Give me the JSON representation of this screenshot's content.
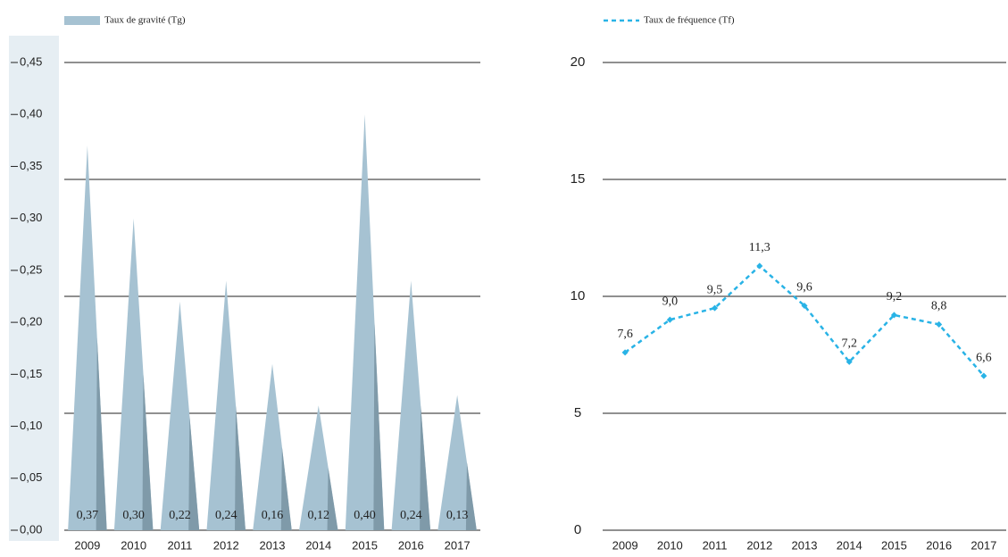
{
  "chart_data": [
    {
      "type": "bar",
      "legend": "Taux de gravité (Tg)",
      "categories": [
        "2009",
        "2010",
        "2011",
        "2012",
        "2013",
        "2014",
        "2015",
        "2016",
        "2017"
      ],
      "values": [
        0.37,
        0.3,
        0.22,
        0.24,
        0.16,
        0.12,
        0.4,
        0.24,
        0.13
      ],
      "value_labels": [
        "0,37",
        "0,30",
        "0,22",
        "0,24",
        "0,16",
        "0,12",
        "0,40",
        "0,24",
        "0,13"
      ],
      "color": "#a6c2d2",
      "ylim": [
        0,
        0.45
      ],
      "yticks": [
        {
          "value": 0,
          "label": "0,00"
        },
        {
          "value": 0.05,
          "label": "0,05"
        },
        {
          "value": 0.1,
          "label": "0,10"
        },
        {
          "value": 0.15,
          "label": "0,15"
        },
        {
          "value": 0.2,
          "label": "0,20"
        },
        {
          "value": 0.25,
          "label": "0,25"
        },
        {
          "value": 0.3,
          "label": "0,30"
        },
        {
          "value": 0.35,
          "label": "0,35"
        },
        {
          "value": 0.4,
          "label": "0,40"
        },
        {
          "value": 0.45,
          "label": "0,45"
        }
      ]
    },
    {
      "type": "line",
      "legend": "Taux de fréquence (Tf)",
      "categories": [
        "2009",
        "2010",
        "2011",
        "2012",
        "2013",
        "2014",
        "2015",
        "2016",
        "2017"
      ],
      "values": [
        7.6,
        9.0,
        9.5,
        11.3,
        9.6,
        7.2,
        9.2,
        8.8,
        6.6
      ],
      "value_labels": [
        "7,6",
        "9,0",
        "9,5",
        "11,3",
        "9,6",
        "7,2",
        "9,2",
        "8,8",
        "6,6"
      ],
      "color": "#29b3e6",
      "ylim": [
        0,
        20
      ],
      "yticks": [
        0,
        5,
        10,
        15,
        20
      ],
      "grid": true
    }
  ]
}
